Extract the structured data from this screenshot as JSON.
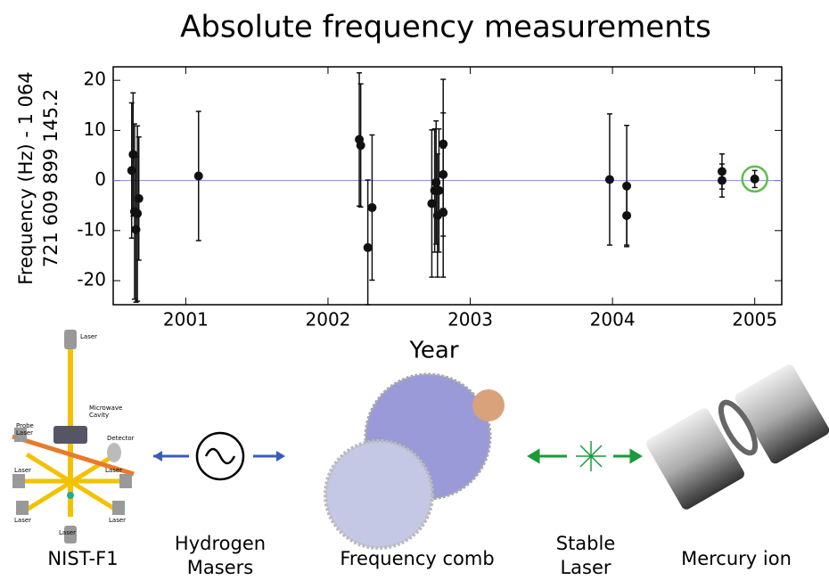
{
  "chart_data": {
    "type": "errorbar",
    "title": "Absolute frequency measurements",
    "ylabel": [
      "Frequency (Hz) - 1 064",
      "721 609 899 145.2"
    ],
    "xlabel": "Year",
    "x": [
      2000.63,
      2000.62,
      2000.64,
      2000.65,
      2000.66,
      2000.67,
      2001.09,
      2002.22,
      2002.23,
      2002.28,
      2002.31,
      2002.73,
      2002.75,
      2002.76,
      2002.77,
      2002.78,
      2002.81,
      2002.81,
      2002.81,
      2003.98,
      2004.1,
      2004.1,
      2004.77,
      2004.77,
      2005.0
    ],
    "values": [
      5.2,
      2.0,
      -6.2,
      -9.8,
      -6.6,
      -3.6,
      0.9,
      8.2,
      7.0,
      -13.4,
      -5.4,
      -4.6,
      -2.0,
      -0.4,
      -7.0,
      -2.0,
      7.3,
      1.2,
      -6.4,
      0.2,
      -1.1,
      -7.0,
      1.8,
      0.0,
      0.3
    ],
    "errors": [
      12.3,
      13.5,
      17.5,
      14.5,
      17.5,
      12.3,
      12.9,
      13.3,
      12.3,
      13.5,
      14.5,
      14.7,
      12.3,
      12.3,
      12.3,
      12.3,
      12.9,
      12.3,
      12.9,
      13.1,
      12.1,
      5.9,
      3.5,
      3.3,
      1.7
    ],
    "color": "#111111",
    "ref_color": "#8a8ad6",
    "highlight_color": "#5cbf4a",
    "xlim": [
      2000.49,
      2005.19
    ],
    "xticks": [
      2001,
      2002,
      2003,
      2004,
      2005
    ],
    "ylim": [
      -24.8,
      22.7
    ],
    "yticks": [
      -20,
      -10,
      0,
      10,
      20
    ]
  },
  "diagram": {
    "labels": [
      "NIST-F1",
      "Hydrogen",
      "Masers",
      "Frequency comb",
      "Stable",
      "Laser",
      "Mercury ion"
    ],
    "fountain_labels": [
      "Laser",
      "Microwave",
      "Cavity",
      "Probe",
      "Laser",
      "Detector",
      "Laser",
      "Laser",
      "Laser",
      "Laser",
      "Laser"
    ]
  }
}
